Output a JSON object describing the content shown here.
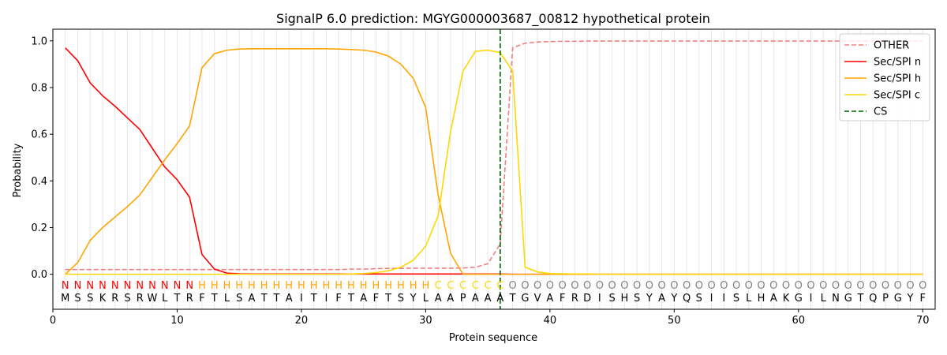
{
  "chart_data": {
    "type": "line",
    "title": "SignalP 6.0 prediction: MGYG000003687_00812 hypothetical protein",
    "xlabel": "Protein sequence",
    "ylabel": "Probability",
    "xlim": [
      0,
      71
    ],
    "ylim": [
      -0.15,
      1.05
    ],
    "xticks": [
      0,
      10,
      20,
      30,
      40,
      50,
      60,
      70
    ],
    "yticks": [
      0.0,
      0.2,
      0.4,
      0.6,
      0.8,
      1.0
    ],
    "ytick_labels": [
      "0.0",
      "0.2",
      "0.4",
      "0.6",
      "0.8",
      "1.0"
    ],
    "grid": "vertical lines at each residue",
    "legend_position": "top-right",
    "cleavage_site": {
      "name": "CS",
      "x": 36,
      "color": "#006400"
    },
    "sequence": [
      "M",
      "S",
      "S",
      "K",
      "R",
      "S",
      "R",
      "W",
      "L",
      "T",
      "R",
      "F",
      "T",
      "L",
      "S",
      "A",
      "T",
      "T",
      "A",
      "I",
      "T",
      "I",
      "F",
      "T",
      "A",
      "F",
      "T",
      "S",
      "Y",
      "L",
      "A",
      "A",
      "P",
      "A",
      "A",
      "A",
      "T",
      "G",
      "V",
      "A",
      "F",
      "R",
      "D",
      "I",
      "S",
      "H",
      "S",
      "Y",
      "A",
      "Y",
      "Q",
      "S",
      "I",
      "I",
      "S",
      "L",
      "H",
      "A",
      "K",
      "G",
      "I",
      "L",
      "N",
      "G",
      "T",
      "Q",
      "P",
      "G",
      "Y",
      "F"
    ],
    "region_labels": [
      "N",
      "N",
      "N",
      "N",
      "N",
      "N",
      "N",
      "N",
      "N",
      "N",
      "N",
      "H",
      "H",
      "H",
      "H",
      "H",
      "H",
      "H",
      "H",
      "H",
      "H",
      "H",
      "H",
      "H",
      "H",
      "H",
      "H",
      "H",
      "H",
      "H",
      "C",
      "C",
      "C",
      "C",
      "C",
      "C",
      "O",
      "O",
      "O",
      "O",
      "O",
      "O",
      "O",
      "O",
      "O",
      "O",
      "O",
      "O",
      "O",
      "O",
      "O",
      "O",
      "O",
      "O",
      "O",
      "O",
      "O",
      "O",
      "O",
      "O",
      "O",
      "O",
      "O",
      "O",
      "O",
      "O",
      "O",
      "O",
      "O",
      "O"
    ],
    "region_colors": {
      "N": "#ff0000",
      "H": "#ffa500",
      "C": "#ffd700",
      "O": "#808080"
    },
    "series": [
      {
        "name": "OTHER",
        "color": "#f08080",
        "dash": "dashed",
        "values": [
          0.02,
          0.02,
          0.02,
          0.02,
          0.02,
          0.02,
          0.02,
          0.02,
          0.02,
          0.02,
          0.02,
          0.02,
          0.02,
          0.02,
          0.02,
          0.02,
          0.02,
          0.02,
          0.02,
          0.02,
          0.02,
          0.02,
          0.02,
          0.022,
          0.022,
          0.024,
          0.025,
          0.025,
          0.026,
          0.026,
          0.026,
          0.026,
          0.027,
          0.03,
          0.045,
          0.13,
          0.97,
          0.99,
          0.995,
          0.997,
          0.998,
          0.998,
          0.999,
          0.999,
          0.999,
          0.999,
          0.999,
          0.999,
          0.999,
          0.999,
          0.999,
          0.999,
          0.999,
          0.999,
          0.999,
          0.999,
          0.999,
          0.999,
          0.999,
          0.999,
          0.999,
          0.999,
          0.999,
          0.999,
          0.999,
          0.999,
          0.999,
          0.999,
          0.999,
          0.999
        ]
      },
      {
        "name": "Sec/SPI n",
        "color": "#ff0000",
        "dash": "solid",
        "values": [
          0.97,
          0.915,
          0.82,
          0.765,
          0.72,
          0.67,
          0.62,
          0.54,
          0.46,
          0.405,
          0.33,
          0.085,
          0.022,
          0.005,
          0.002,
          0.001,
          0.001,
          0.001,
          0.001,
          0.001,
          0.001,
          0.001,
          0.001,
          0.001,
          0.001,
          0.001,
          0.001,
          0.001,
          0.001,
          0.001,
          0.001,
          0.001,
          0.001,
          0.001,
          0.001,
          0.001,
          0.0,
          0.0,
          0.0,
          0.0,
          0.0,
          0.0,
          0.0,
          0.0,
          0.0,
          0.0,
          0.0,
          0.0,
          0.0,
          0.0,
          0.0,
          0.0,
          0.0,
          0.0,
          0.0,
          0.0,
          0.0,
          0.0,
          0.0,
          0.0,
          0.0,
          0.0,
          0.0,
          0.0,
          0.0,
          0.0,
          0.0,
          0.0,
          0.0,
          0.0
        ]
      },
      {
        "name": "Sec/SPI h",
        "color": "#ffa500",
        "dash": "solid",
        "values": [
          0.0,
          0.05,
          0.145,
          0.2,
          0.245,
          0.29,
          0.34,
          0.415,
          0.49,
          0.56,
          0.635,
          0.885,
          0.945,
          0.96,
          0.965,
          0.966,
          0.966,
          0.966,
          0.966,
          0.966,
          0.966,
          0.966,
          0.965,
          0.963,
          0.96,
          0.952,
          0.935,
          0.9,
          0.84,
          0.715,
          0.34,
          0.09,
          0.0,
          0.0,
          0.0,
          0.0,
          0.0,
          0.0,
          0.0,
          0.0,
          0.0,
          0.0,
          0.0,
          0.0,
          0.0,
          0.0,
          0.0,
          0.0,
          0.0,
          0.0,
          0.0,
          0.0,
          0.0,
          0.0,
          0.0,
          0.0,
          0.0,
          0.0,
          0.0,
          0.0,
          0.0,
          0.0,
          0.0,
          0.0,
          0.0,
          0.0,
          0.0,
          0.0,
          0.0,
          0.0
        ]
      },
      {
        "name": "Sec/SPI c",
        "color": "#ffd700",
        "dash": "solid",
        "values": [
          0.0,
          0.0,
          0.0,
          0.0,
          0.0,
          0.0,
          0.0,
          0.0,
          0.0,
          0.0,
          0.0,
          0.0,
          0.0,
          0.0,
          0.0,
          0.0,
          0.0,
          0.0,
          0.0,
          0.0,
          0.0,
          0.0,
          0.0,
          0.001,
          0.003,
          0.007,
          0.015,
          0.03,
          0.06,
          0.12,
          0.25,
          0.61,
          0.87,
          0.955,
          0.96,
          0.95,
          0.87,
          0.03,
          0.01,
          0.003,
          0.002,
          0.001,
          0.001,
          0.0,
          0.0,
          0.0,
          0.0,
          0.0,
          0.0,
          0.0,
          0.0,
          0.0,
          0.0,
          0.0,
          0.0,
          0.0,
          0.0,
          0.0,
          0.0,
          0.0,
          0.0,
          0.0,
          0.0,
          0.0,
          0.0,
          0.0,
          0.0,
          0.0,
          0.0,
          0.0
        ]
      }
    ]
  }
}
